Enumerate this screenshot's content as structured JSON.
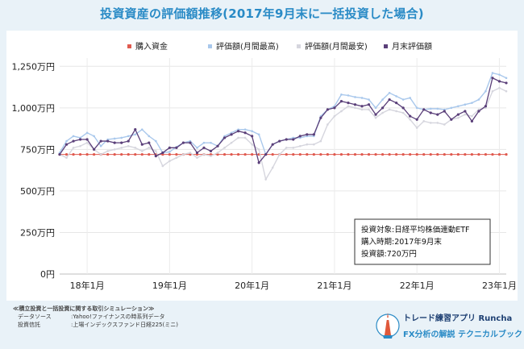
{
  "title": "投資資産の評価額推移(2017年9月末に一括投資した場合)",
  "chart_data": {
    "type": "line",
    "x_tick_labels": [
      "18年1月",
      "19年1月",
      "20年1月",
      "21年1月",
      "22年1月",
      "23年1月"
    ],
    "x_tick_months": [
      4,
      16,
      28,
      40,
      52,
      64
    ],
    "y_tick_values": [
      0,
      250,
      500,
      750,
      1000,
      1250
    ],
    "y_tick_labels": [
      "0円",
      "250万円",
      "500万円",
      "750万円",
      "1,000万円",
      "1,250万円"
    ],
    "ylim": [
      0,
      1300
    ],
    "y_unit": "万円",
    "x_month_range": [
      0,
      65
    ],
    "grid": true,
    "legend_position": "top",
    "series": [
      {
        "name": "購入資金",
        "color": "#e05a4f",
        "style": "dotted",
        "values": [
          720,
          720,
          720,
          720,
          720,
          720,
          720,
          720,
          720,
          720,
          720,
          720,
          720,
          720,
          720,
          720,
          720,
          720,
          720,
          720,
          720,
          720,
          720,
          720,
          720,
          720,
          720,
          720,
          720,
          720,
          720,
          720,
          720,
          720,
          720,
          720,
          720,
          720,
          720,
          720,
          720,
          720,
          720,
          720,
          720,
          720,
          720,
          720,
          720,
          720,
          720,
          720,
          720,
          720,
          720,
          720,
          720,
          720,
          720,
          720,
          720,
          720,
          720,
          720,
          720,
          720
        ]
      },
      {
        "name": "評価額(月間最高)",
        "color": "#a9c8ec",
        "style": "line",
        "values": [
          730,
          800,
          830,
          820,
          850,
          830,
          770,
          810,
          815,
          820,
          830,
          840,
          870,
          830,
          800,
          730,
          735,
          765,
          790,
          800,
          760,
          790,
          790,
          770,
          830,
          850,
          870,
          870,
          860,
          840,
          720,
          780,
          800,
          810,
          820,
          820,
          830,
          830,
          950,
          990,
          1010,
          1080,
          1075,
          1065,
          1060,
          1050,
          1000,
          1050,
          1090,
          1070,
          1050,
          1060,
          1000,
          990,
          995,
          995,
          990,
          1000,
          1010,
          1020,
          1030,
          1050,
          1100,
          1210,
          1200,
          1180
        ]
      },
      {
        "name": "評価額(月間最安)",
        "color": "#d6d6de",
        "style": "line",
        "values": [
          720,
          700,
          760,
          770,
          790,
          750,
          720,
          740,
          750,
          760,
          770,
          760,
          740,
          760,
          740,
          650,
          680,
          700,
          720,
          730,
          700,
          720,
          710,
          730,
          760,
          790,
          820,
          820,
          780,
          750,
          570,
          640,
          720,
          760,
          760,
          770,
          780,
          780,
          800,
          900,
          950,
          980,
          1010,
          1000,
          990,
          990,
          940,
          970,
          990,
          980,
          970,
          930,
          880,
          920,
          910,
          910,
          900,
          930,
          940,
          960,
          950,
          990,
          1000,
          1100,
          1120,
          1100
        ]
      },
      {
        "name": "月末評価額",
        "color": "#5a3f79",
        "style": "line-dots",
        "values": [
          720,
          780,
          800,
          810,
          810,
          750,
          800,
          800,
          790,
          790,
          800,
          870,
          780,
          790,
          710,
          730,
          760,
          760,
          790,
          790,
          730,
          760,
          740,
          770,
          820,
          840,
          860,
          850,
          830,
          670,
          720,
          780,
          800,
          810,
          810,
          830,
          840,
          840,
          940,
          990,
          1000,
          1040,
          1030,
          1020,
          1010,
          1020,
          960,
          1000,
          1050,
          1030,
          1000,
          950,
          930,
          990,
          970,
          960,
          980,
          930,
          960,
          980,
          920,
          980,
          1010,
          1180,
          1160,
          1150
        ]
      }
    ],
    "annotation": {
      "lines": [
        "投資対象:日経平均株価連動ETF",
        "購入時期:2017年9月末",
        "投資額:720万円"
      ]
    }
  },
  "footer": {
    "heading": "≪積立投資と一括投資に関する取引シミュレーション≫",
    "source_label": "データソース",
    "source_value": ":Yahoo!ファイナンスの時系列データ",
    "trust_label": "投資信託",
    "trust_value": ":上場インデックスファンド日経225(ミニ)"
  },
  "brand": {
    "name": "トレード練習アプリ Runcha",
    "subtitle": "FX分析の解説 テクニカルブック"
  }
}
